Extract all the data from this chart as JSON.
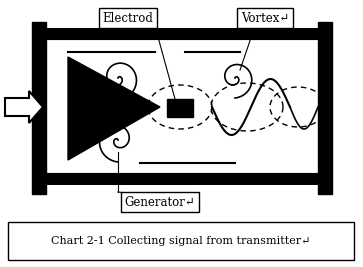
{
  "bg_color": "#ffffff",
  "title_text": "Chart 2-1 Collecting signal from transmitter↵",
  "electrod_label": "Electrod",
  "vortex_label": "Vortex↵",
  "generator_label": "Generator↵",
  "fig_w": 3.63,
  "fig_h": 2.67,
  "dpi": 100
}
